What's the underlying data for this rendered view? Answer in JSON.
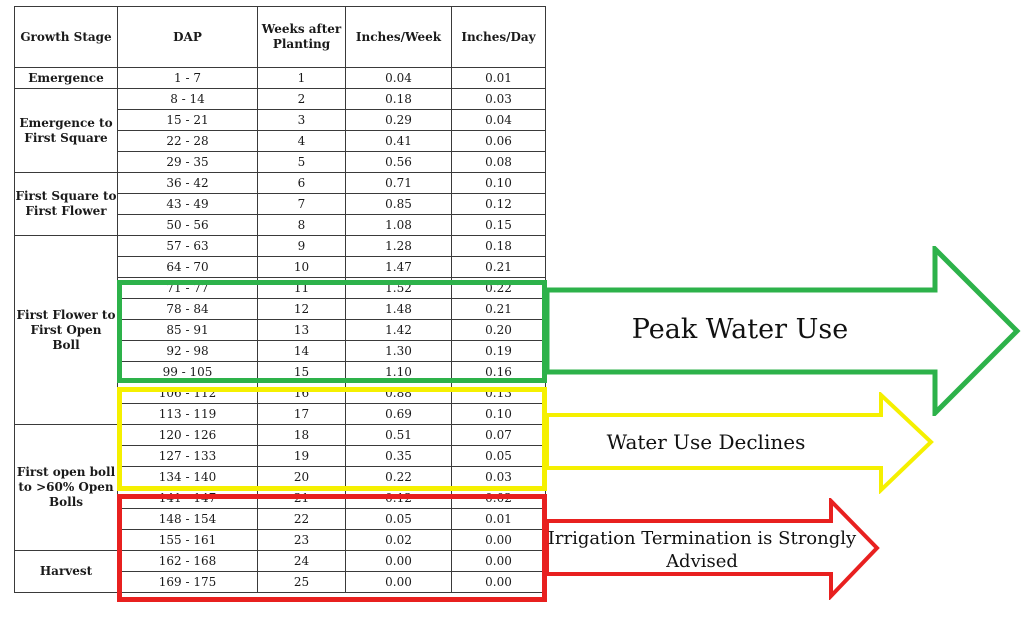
{
  "columns": [
    "Growth Stage",
    "DAP",
    "Weeks after Planting",
    "Inches/Week",
    "Inches/Day"
  ],
  "stages": [
    {
      "label": "Emergence",
      "rows": 1
    },
    {
      "label": "Emergence to First Square",
      "rows": 4
    },
    {
      "label": "First Square to First Flower",
      "rows": 3
    },
    {
      "label": "First Flower to First Open Boll",
      "rows": 9
    },
    {
      "label": "First open boll to >60% Open Bolls",
      "rows": 6
    },
    {
      "label": "Harvest",
      "rows": 2
    }
  ],
  "rows": [
    [
      "1 - 7",
      "1",
      "0.04",
      "0.01"
    ],
    [
      "8 - 14",
      "2",
      "0.18",
      "0.03"
    ],
    [
      "15 - 21",
      "3",
      "0.29",
      "0.04"
    ],
    [
      "22 - 28",
      "4",
      "0.41",
      "0.06"
    ],
    [
      "29 - 35",
      "5",
      "0.56",
      "0.08"
    ],
    [
      "36 - 42",
      "6",
      "0.71",
      "0.10"
    ],
    [
      "43 - 49",
      "7",
      "0.85",
      "0.12"
    ],
    [
      "50 - 56",
      "8",
      "1.08",
      "0.15"
    ],
    [
      "57 - 63",
      "9",
      "1.28",
      "0.18"
    ],
    [
      "64 - 70",
      "10",
      "1.47",
      "0.21"
    ],
    [
      "71 - 77",
      "11",
      "1.52",
      "0.22"
    ],
    [
      "78 - 84",
      "12",
      "1.48",
      "0.21"
    ],
    [
      "85 - 91",
      "13",
      "1.42",
      "0.20"
    ],
    [
      "92 - 98",
      "14",
      "1.30",
      "0.19"
    ],
    [
      "99 - 105",
      "15",
      "1.10",
      "0.16"
    ],
    [
      "106 - 112",
      "16",
      "0.88",
      "0.13"
    ],
    [
      "113 - 119",
      "17",
      "0.69",
      "0.10"
    ],
    [
      "120 - 126",
      "18",
      "0.51",
      "0.07"
    ],
    [
      "127 - 133",
      "19",
      "0.35",
      "0.05"
    ],
    [
      "134 - 140",
      "20",
      "0.22",
      "0.03"
    ],
    [
      "141 - 147",
      "21",
      "0.12",
      "0.02"
    ],
    [
      "148 - 154",
      "22",
      "0.05",
      "0.01"
    ],
    [
      "155 - 161",
      "23",
      "0.02",
      "0.00"
    ],
    [
      "162 - 168",
      "24",
      "0.00",
      "0.00"
    ],
    [
      "169 - 175",
      "25",
      "0.00",
      "0.00"
    ]
  ],
  "callouts": {
    "peak": "Peak Water Use",
    "declines": "Water Use Declines",
    "termination": "Irrigation Termination is Strongly Advised"
  },
  "colors": {
    "peak": "#2db24a",
    "declines": "#f5f000",
    "termination": "#e8201f"
  }
}
